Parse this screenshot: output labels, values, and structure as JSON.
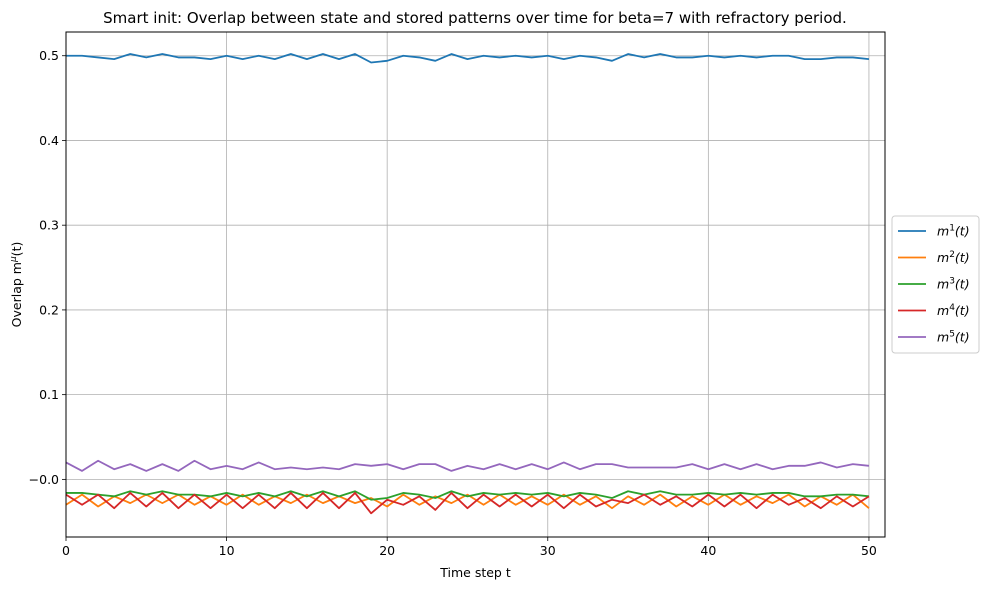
{
  "chart_data": {
    "type": "line",
    "title": "Smart init: Overlap between state and stored patterns over time for beta=7 with refractory period.",
    "xlabel": "Time step t",
    "ylabel_base": "Overlap m",
    "ylabel_sup": "μ",
    "ylabel_tail": "(t)",
    "xlim": [
      0,
      51
    ],
    "ylim": [
      -0.068,
      0.528
    ],
    "xticks": [
      0,
      10,
      20,
      30,
      40,
      50
    ],
    "yticks": [
      -0.0,
      0.1,
      0.2,
      0.3,
      0.4,
      0.5
    ],
    "ytick_labels": [
      "−0.0",
      "0.1",
      "0.2",
      "0.3",
      "0.4",
      "0.5"
    ],
    "grid": true,
    "legend_position": "center-right-outside",
    "x": [
      0,
      1,
      2,
      3,
      4,
      5,
      6,
      7,
      8,
      9,
      10,
      11,
      12,
      13,
      14,
      15,
      16,
      17,
      18,
      19,
      20,
      21,
      22,
      23,
      24,
      25,
      26,
      27,
      28,
      29,
      30,
      31,
      32,
      33,
      34,
      35,
      36,
      37,
      38,
      39,
      40,
      41,
      42,
      43,
      44,
      45,
      46,
      47,
      48,
      49,
      50
    ],
    "series": [
      {
        "name_base": "m",
        "name_sup": "1",
        "name_tail": "(t)",
        "color": "#1f77b4",
        "values": [
          0.5,
          0.5,
          0.498,
          0.496,
          0.502,
          0.498,
          0.502,
          0.498,
          0.498,
          0.496,
          0.5,
          0.496,
          0.5,
          0.496,
          0.502,
          0.496,
          0.502,
          0.496,
          0.502,
          0.492,
          0.494,
          0.5,
          0.498,
          0.494,
          0.502,
          0.496,
          0.5,
          0.498,
          0.5,
          0.498,
          0.5,
          0.496,
          0.5,
          0.498,
          0.494,
          0.502,
          0.498,
          0.502,
          0.498,
          0.498,
          0.5,
          0.498,
          0.5,
          0.498,
          0.5,
          0.5,
          0.496,
          0.496,
          0.498,
          0.498,
          0.496
        ]
      },
      {
        "name_base": "m",
        "name_sup": "2",
        "name_tail": "(t)",
        "color": "#ff7f0e",
        "values": [
          -0.03,
          -0.018,
          -0.032,
          -0.02,
          -0.028,
          -0.018,
          -0.028,
          -0.018,
          -0.03,
          -0.02,
          -0.03,
          -0.018,
          -0.03,
          -0.02,
          -0.028,
          -0.018,
          -0.028,
          -0.02,
          -0.028,
          -0.022,
          -0.032,
          -0.018,
          -0.03,
          -0.02,
          -0.028,
          -0.018,
          -0.03,
          -0.018,
          -0.03,
          -0.02,
          -0.03,
          -0.018,
          -0.03,
          -0.02,
          -0.034,
          -0.02,
          -0.03,
          -0.018,
          -0.032,
          -0.02,
          -0.03,
          -0.018,
          -0.03,
          -0.02,
          -0.028,
          -0.018,
          -0.032,
          -0.02,
          -0.03,
          -0.018,
          -0.034
        ]
      },
      {
        "name_base": "m",
        "name_sup": "3",
        "name_tail": "(t)",
        "color": "#2ca02c",
        "values": [
          -0.016,
          -0.016,
          -0.018,
          -0.02,
          -0.014,
          -0.018,
          -0.014,
          -0.018,
          -0.018,
          -0.02,
          -0.016,
          -0.02,
          -0.016,
          -0.02,
          -0.014,
          -0.02,
          -0.014,
          -0.02,
          -0.014,
          -0.024,
          -0.022,
          -0.016,
          -0.018,
          -0.022,
          -0.014,
          -0.02,
          -0.016,
          -0.018,
          -0.016,
          -0.018,
          -0.016,
          -0.02,
          -0.016,
          -0.018,
          -0.022,
          -0.014,
          -0.018,
          -0.014,
          -0.018,
          -0.018,
          -0.016,
          -0.018,
          -0.016,
          -0.018,
          -0.016,
          -0.016,
          -0.02,
          -0.02,
          -0.018,
          -0.018,
          -0.02
        ]
      },
      {
        "name_base": "m",
        "name_sup": "4",
        "name_tail": "(t)",
        "color": "#d62728",
        "values": [
          -0.018,
          -0.03,
          -0.018,
          -0.034,
          -0.016,
          -0.032,
          -0.016,
          -0.034,
          -0.018,
          -0.034,
          -0.018,
          -0.034,
          -0.018,
          -0.034,
          -0.016,
          -0.034,
          -0.016,
          -0.034,
          -0.016,
          -0.04,
          -0.024,
          -0.03,
          -0.02,
          -0.036,
          -0.016,
          -0.034,
          -0.018,
          -0.032,
          -0.018,
          -0.032,
          -0.018,
          -0.034,
          -0.018,
          -0.032,
          -0.024,
          -0.028,
          -0.018,
          -0.03,
          -0.02,
          -0.032,
          -0.018,
          -0.032,
          -0.018,
          -0.034,
          -0.018,
          -0.03,
          -0.022,
          -0.034,
          -0.02,
          -0.032,
          -0.02
        ]
      },
      {
        "name_base": "m",
        "name_sup": "5",
        "name_tail": "(t)",
        "color": "#9467bd",
        "values": [
          0.02,
          0.01,
          0.022,
          0.012,
          0.018,
          0.01,
          0.018,
          0.01,
          0.022,
          0.012,
          0.016,
          0.012,
          0.02,
          0.012,
          0.014,
          0.012,
          0.014,
          0.012,
          0.018,
          0.016,
          0.018,
          0.012,
          0.018,
          0.018,
          0.01,
          0.016,
          0.012,
          0.018,
          0.012,
          0.018,
          0.012,
          0.02,
          0.012,
          0.018,
          0.018,
          0.014,
          0.014,
          0.014,
          0.014,
          0.018,
          0.012,
          0.018,
          0.012,
          0.018,
          0.012,
          0.016,
          0.016,
          0.02,
          0.014,
          0.018,
          0.016
        ]
      }
    ]
  }
}
